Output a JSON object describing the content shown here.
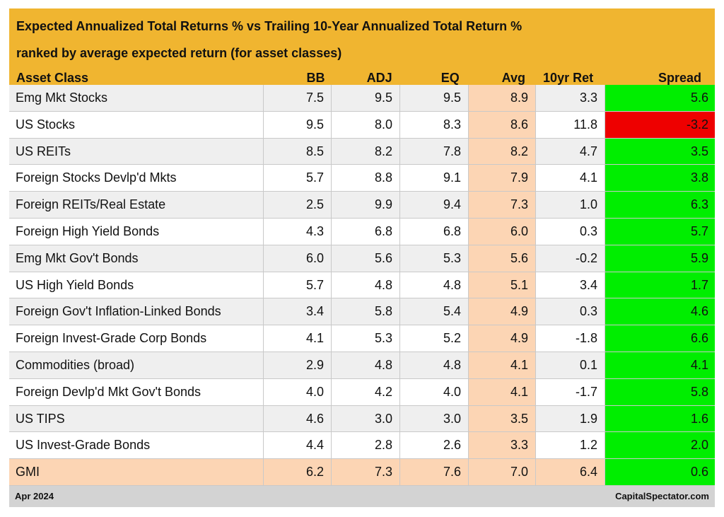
{
  "header": {
    "title_line1": "Expected Annualized Total Returns % vs Trailing 10-Year Annualized Total Return %",
    "title_line2": "ranked by average expected return (for asset classes)"
  },
  "columns": [
    "Asset Class",
    "BB",
    "ADJ",
    "EQ",
    "Avg",
    "10yr Ret",
    "Spread"
  ],
  "colors": {
    "header_bg": "#f0b530",
    "row_gray": "#efefef",
    "row_white": "#ffffff",
    "avg_bg": "#fcd5b4",
    "gmi_bg": "#fcd5b4",
    "spread_positive": "#00ee00",
    "spread_negative": "#ee0000",
    "footer_bg": "#d3d3d3"
  },
  "chart_data": {
    "type": "table",
    "columns": [
      "Asset Class",
      "BB",
      "ADJ",
      "EQ",
      "Avg",
      "10yr Ret",
      "Spread"
    ],
    "rows": [
      [
        "Emg Mkt Stocks",
        "7.5",
        "9.5",
        "9.5",
        "8.9",
        "3.3",
        "5.6"
      ],
      [
        "US Stocks",
        "9.5",
        "8.0",
        "8.3",
        "8.6",
        "11.8",
        "-3.2"
      ],
      [
        "US REITs",
        "8.5",
        "8.2",
        "7.8",
        "8.2",
        "4.7",
        "3.5"
      ],
      [
        "Foreign Stocks Devlp'd Mkts",
        "5.7",
        "8.8",
        "9.1",
        "7.9",
        "4.1",
        "3.8"
      ],
      [
        "Foreign REITs/Real Estate",
        "2.5",
        "9.9",
        "9.4",
        "7.3",
        "1.0",
        "6.3"
      ],
      [
        "Foreign High Yield Bonds",
        "4.3",
        "6.8",
        "6.8",
        "6.0",
        "0.3",
        "5.7"
      ],
      [
        "Emg Mkt Gov't Bonds",
        "6.0",
        "5.6",
        "5.3",
        "5.6",
        "-0.2",
        "5.9"
      ],
      [
        "US High Yield Bonds",
        "5.7",
        "4.8",
        "4.8",
        "5.1",
        "3.4",
        "1.7"
      ],
      [
        "Foreign Gov't Inflation-Linked Bonds",
        "3.4",
        "5.8",
        "5.4",
        "4.9",
        "0.3",
        "4.6"
      ],
      [
        "Foreign Invest-Grade Corp Bonds",
        "4.1",
        "5.3",
        "5.2",
        "4.9",
        "-1.8",
        "6.6"
      ],
      [
        "Commodities (broad)",
        "2.9",
        "4.8",
        "4.8",
        "4.1",
        "0.1",
        "4.1"
      ],
      [
        "Foreign Devlp'd Mkt Gov't Bonds",
        "4.0",
        "4.2",
        "4.0",
        "4.1",
        "-1.7",
        "5.8"
      ],
      [
        "US TIPS",
        "4.6",
        "3.0",
        "3.0",
        "3.5",
        "1.9",
        "1.6"
      ],
      [
        "US Invest-Grade Bonds",
        "4.4",
        "2.8",
        "2.6",
        "3.3",
        "1.2",
        "2.0"
      ],
      [
        "GMI",
        "6.2",
        "7.3",
        "7.6",
        "7.0",
        "6.4",
        "0.6"
      ]
    ]
  },
  "footer": {
    "date": "Apr 2024",
    "source": "CapitalSpectator.com"
  }
}
